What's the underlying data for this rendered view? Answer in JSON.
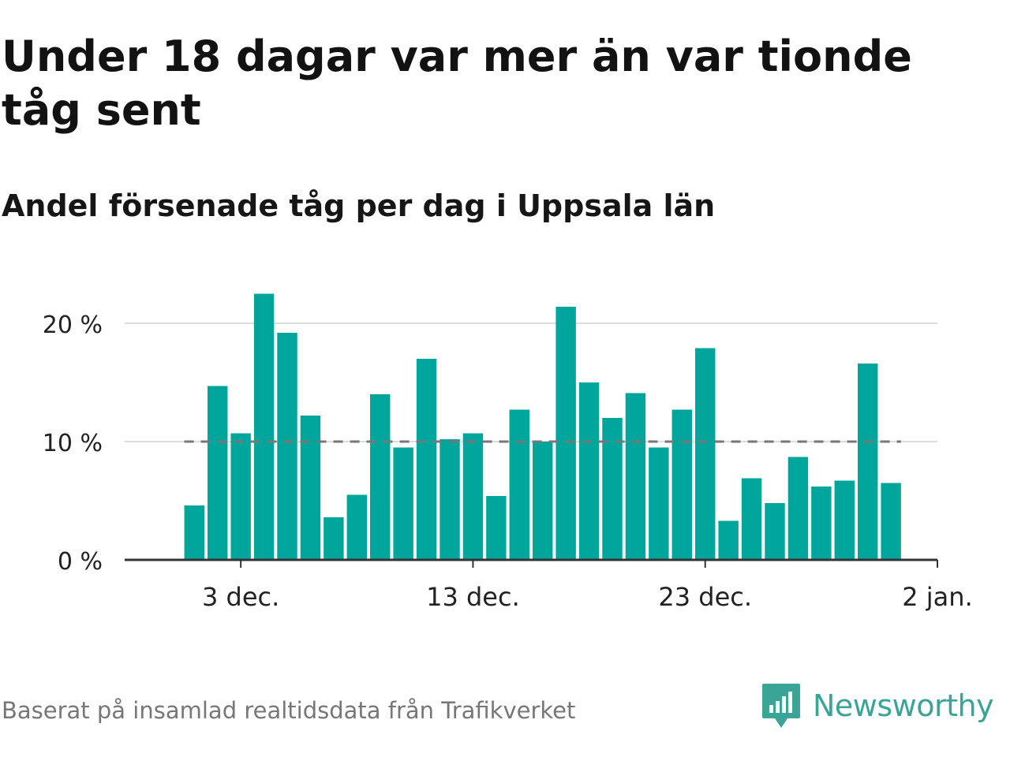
{
  "title": "Under 18 dagar var mer än var tionde tåg sent",
  "subtitle": "Andel försenade tåg per dag i Uppsala län",
  "footer": "Baserat på insamlad realtidsdata från Trafikverket",
  "brand": "Newsworthy",
  "colors": {
    "bar": "#00a69c",
    "reference_line": "#777777",
    "grid": "#dddddd",
    "axis": "#333333",
    "brand": "#3aa597"
  },
  "chart_data": {
    "type": "bar",
    "x": [
      "2023-12-01",
      "2023-12-02",
      "2023-12-03",
      "2023-12-04",
      "2023-12-05",
      "2023-12-06",
      "2023-12-07",
      "2023-12-08",
      "2023-12-09",
      "2023-12-10",
      "2023-12-11",
      "2023-12-12",
      "2023-12-13",
      "2023-12-14",
      "2023-12-15",
      "2023-12-16",
      "2023-12-17",
      "2023-12-18",
      "2023-12-19",
      "2023-12-20",
      "2023-12-21",
      "2023-12-22",
      "2023-12-23",
      "2023-12-24",
      "2023-12-25",
      "2023-12-26",
      "2023-12-27",
      "2023-12-28",
      "2023-12-29",
      "2023-12-30",
      "2023-12-31"
    ],
    "values": [
      4.6,
      14.7,
      10.7,
      22.5,
      19.2,
      12.2,
      3.6,
      5.5,
      14.0,
      9.5,
      17.0,
      10.2,
      10.7,
      5.4,
      12.7,
      10.0,
      21.4,
      15.0,
      12.0,
      14.1,
      9.5,
      12.7,
      17.9,
      3.3,
      6.9,
      4.8,
      8.7,
      6.2,
      6.7,
      16.6,
      6.5
    ],
    "ylim": [
      0,
      24
    ],
    "yticks": [
      0,
      10,
      20
    ],
    "ytick_labels": [
      "0 %",
      "10 %",
      "20 %"
    ],
    "xticks": [
      "2023-12-03",
      "2023-12-13",
      "2023-12-23",
      "2024-01-02"
    ],
    "xtick_labels": [
      "3 dec.",
      "13 dec.",
      "23 dec.",
      "2 jan."
    ],
    "xlim": [
      "2023-11-28",
      "2024-01-02"
    ],
    "reference_line": 10,
    "grid": true,
    "legend": "none"
  }
}
